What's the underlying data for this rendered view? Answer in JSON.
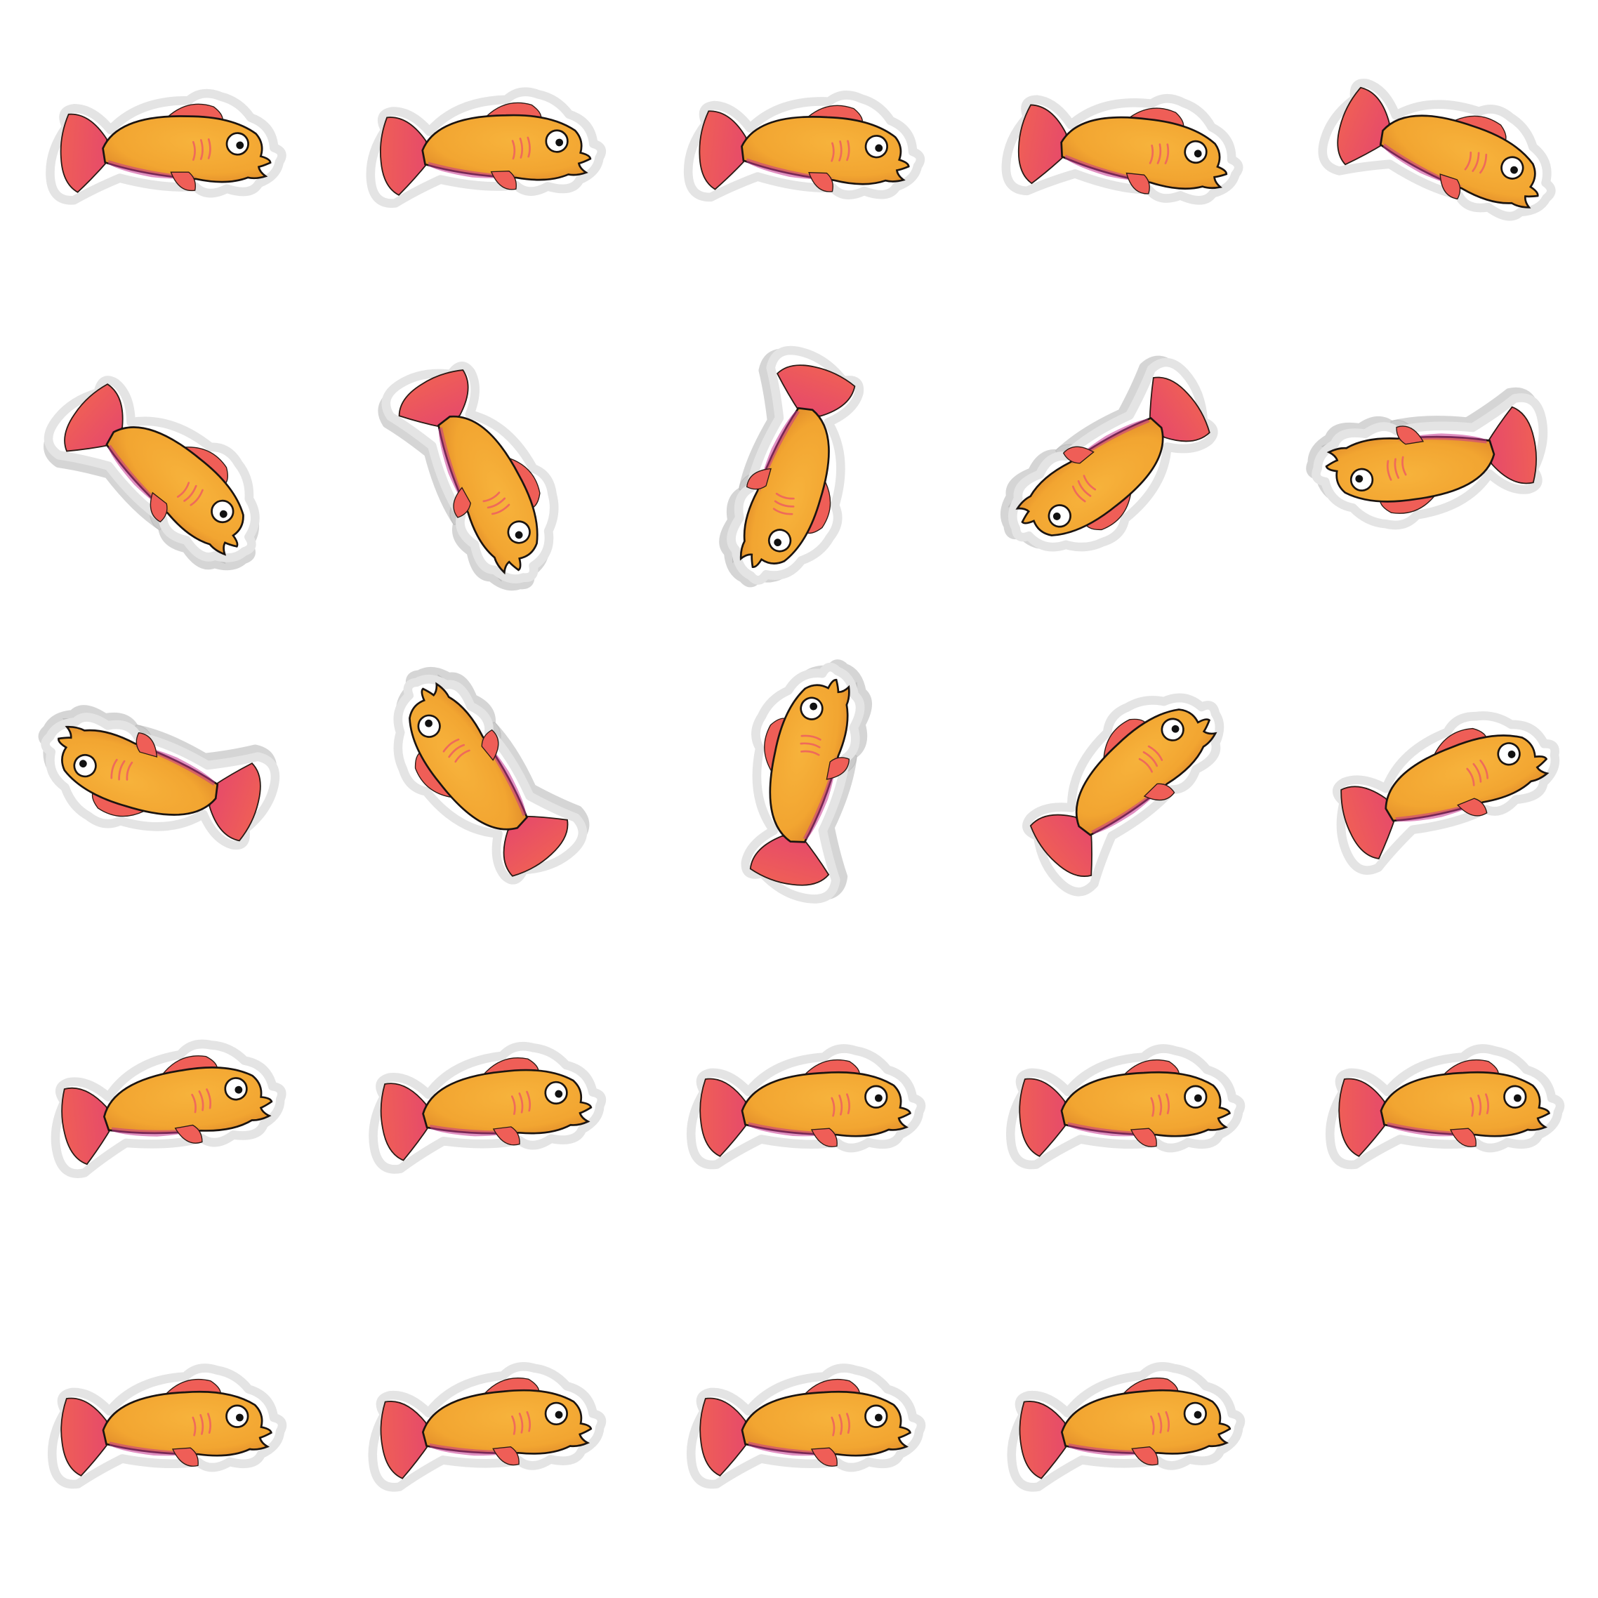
{
  "sprite_sheet": {
    "background": "#ffffff",
    "colors": {
      "body": "#f2a531",
      "body_shade": "#e08a2a",
      "fin": "#ef5e57",
      "fin_shade": "#c94a63",
      "belly_tint": "#c7368f",
      "outline": "#1b1410",
      "halo": "#e6e6e6",
      "eye_white": "#ffffff",
      "pupil": "#111111"
    },
    "frames": [
      {
        "id": 1,
        "row": 1,
        "col": 1,
        "rotation": 4,
        "mirror": false,
        "shadow": false
      },
      {
        "id": 2,
        "row": 1,
        "col": 2,
        "rotation": 2,
        "mirror": false,
        "shadow": false
      },
      {
        "id": 3,
        "row": 1,
        "col": 3,
        "rotation": 6,
        "mirror": false,
        "shadow": false
      },
      {
        "id": 4,
        "row": 1,
        "col": 4,
        "rotation": 10,
        "mirror": false,
        "shadow": false
      },
      {
        "id": 5,
        "row": 1,
        "col": 5,
        "rotation": 22,
        "mirror": false,
        "shadow": false
      },
      {
        "id": 6,
        "row": 2,
        "col": 1,
        "rotation": 42,
        "mirror": false,
        "shadow": true
      },
      {
        "id": 7,
        "row": 2,
        "col": 2,
        "rotation": 65,
        "mirror": false,
        "shadow": true
      },
      {
        "id": 8,
        "row": 2,
        "col": 3,
        "rotation": 110,
        "mirror": false,
        "shadow": true
      },
      {
        "id": 9,
        "row": 2,
        "col": 4,
        "rotation": 145,
        "mirror": false,
        "shadow": true
      },
      {
        "id": 10,
        "row": 2,
        "col": 5,
        "rotation": 175,
        "mirror": false,
        "shadow": true
      },
      {
        "id": 11,
        "row": 3,
        "col": 1,
        "rotation": 200,
        "mirror": false,
        "shadow": true
      },
      {
        "id": 12,
        "row": 3,
        "col": 2,
        "rotation": 235,
        "mirror": false,
        "shadow": true
      },
      {
        "id": 13,
        "row": 3,
        "col": 3,
        "rotation": 285,
        "mirror": false,
        "shadow": true
      },
      {
        "id": 14,
        "row": 3,
        "col": 4,
        "rotation": -40,
        "mirror": false,
        "shadow": false
      },
      {
        "id": 15,
        "row": 3,
        "col": 5,
        "rotation": -18,
        "mirror": false,
        "shadow": false
      },
      {
        "id": 16,
        "row": 4,
        "col": 1,
        "rotation": -6,
        "mirror": false,
        "shadow": false
      },
      {
        "id": 17,
        "row": 4,
        "col": 2,
        "rotation": -3,
        "mirror": false,
        "shadow": false
      },
      {
        "id": 18,
        "row": 4,
        "col": 3,
        "rotation": 0,
        "mirror": false,
        "shadow": false
      },
      {
        "id": 19,
        "row": 4,
        "col": 4,
        "rotation": 0,
        "mirror": false,
        "shadow": false
      },
      {
        "id": 20,
        "row": 4,
        "col": 5,
        "rotation": 0,
        "mirror": false,
        "shadow": false
      },
      {
        "id": 21,
        "row": 5,
        "col": 1,
        "rotation": 0,
        "mirror": false,
        "shadow": false
      },
      {
        "id": 22,
        "row": 5,
        "col": 2,
        "rotation": -2,
        "mirror": false,
        "shadow": false
      },
      {
        "id": 23,
        "row": 5,
        "col": 3,
        "rotation": 0,
        "mirror": false,
        "shadow": false
      },
      {
        "id": 24,
        "row": 5,
        "col": 4,
        "rotation": -2,
        "mirror": false,
        "shadow": false
      }
    ]
  }
}
